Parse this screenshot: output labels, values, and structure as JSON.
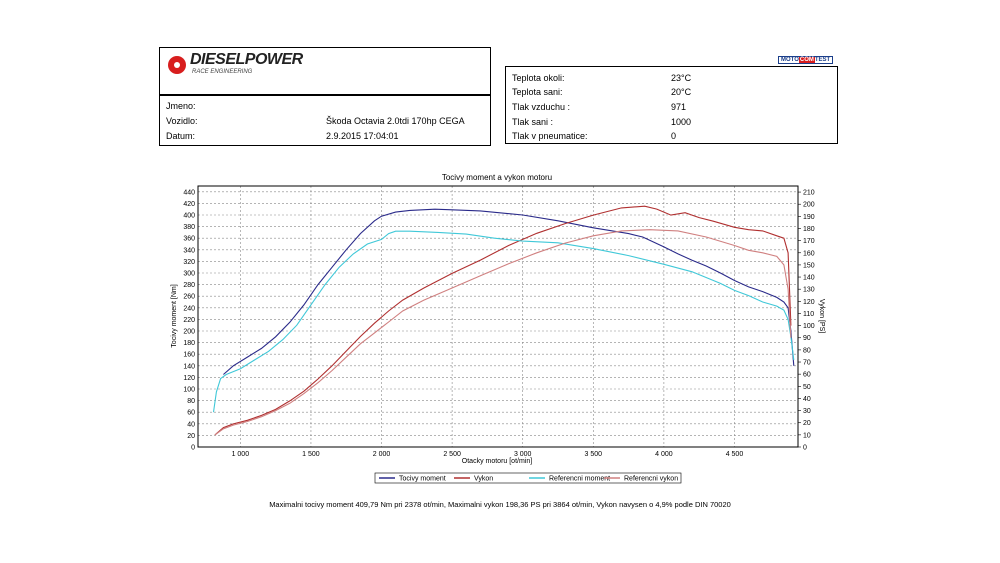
{
  "header": {
    "logo_text": "DIESELPOWER",
    "logo_sub": "RACE ENGINEERING",
    "badge_left": "MOTO",
    "badge_mid": "COM",
    "badge_right": "TEST"
  },
  "info": {
    "jmeno_label": "Jmeno:",
    "jmeno_value": "",
    "vozidlo_label": "Vozidlo:",
    "vozidlo_value": "Škoda Octavia 2.0tdi 170hp CEGA",
    "datum_label": "Datum:",
    "datum_value": "2.9.2015 17:04:01"
  },
  "conditions": [
    {
      "label": "Teplota okoli:",
      "value": "23°C"
    },
    {
      "label": "Teplota sani:",
      "value": "20°C"
    },
    {
      "label": "Tlak vzduchu :",
      "value": "971"
    },
    {
      "label": "Tlak sani :",
      "value": "1000"
    },
    {
      "label": "Tlak v pneumatice:",
      "value": "0"
    }
  ],
  "footer": "Maximalni tocivy moment 409,79 Nm pri 2378 ot/min,  Maximalni vykon 198,36 PS pri 3864 ot/min,  Vykon navysen o 4,9% podle DIN 70020",
  "chart_data": {
    "type": "line",
    "title": "Tocivy moment a vykon motoru",
    "xlabel": "Otacky motoru [ot/min]",
    "ylabel": "Tocivy moment [Nm]",
    "y2label": "Vykon [PS]",
    "xlim": [
      700,
      4950
    ],
    "ylim": [
      0,
      450
    ],
    "y2lim": [
      0,
      215
    ],
    "x_ticks": [
      1000,
      1500,
      2000,
      2500,
      3000,
      3500,
      4000,
      4500
    ],
    "x_tick_labels": [
      "1 000",
      "1 500",
      "2 000",
      "2 500",
      "3 000",
      "3 500",
      "4 000",
      "4 500"
    ],
    "y_ticks": [
      0,
      20,
      40,
      60,
      80,
      100,
      120,
      140,
      160,
      180,
      200,
      220,
      240,
      260,
      280,
      300,
      320,
      340,
      360,
      380,
      400,
      420,
      440
    ],
    "y2_ticks": [
      0,
      10,
      20,
      30,
      40,
      50,
      60,
      70,
      80,
      90,
      100,
      110,
      120,
      130,
      140,
      150,
      160,
      170,
      180,
      190,
      200,
      210
    ],
    "grid": true,
    "legend_position": "bottom",
    "colors": {
      "torque": "#2a2a8a",
      "power": "#b03030",
      "ref_torque": "#40c8d8",
      "ref_power": "#d08080"
    },
    "series": [
      {
        "name": "Tocivy moment",
        "axis": "left",
        "color": "#2a2a8a",
        "x": [
          880,
          950,
          1050,
          1150,
          1250,
          1350,
          1450,
          1550,
          1650,
          1750,
          1850,
          1950,
          2000,
          2100,
          2200,
          2378,
          2500,
          2700,
          3000,
          3250,
          3500,
          3750,
          3850,
          4000,
          4100,
          4200,
          4300,
          4400,
          4500,
          4600,
          4700,
          4800,
          4850,
          4880,
          4900,
          4920
        ],
        "y": [
          125,
          140,
          155,
          170,
          190,
          215,
          245,
          280,
          310,
          340,
          368,
          390,
          398,
          405,
          408,
          410,
          409,
          407,
          400,
          390,
          378,
          368,
          362,
          345,
          333,
          322,
          312,
          300,
          287,
          276,
          268,
          258,
          250,
          240,
          200,
          140
        ]
      },
      {
        "name": "Vykon",
        "axis": "right",
        "color": "#b03030",
        "x": [
          820,
          880,
          950,
          1050,
          1150,
          1250,
          1350,
          1450,
          1550,
          1650,
          1750,
          1850,
          1950,
          2050,
          2150,
          2300,
          2500,
          2700,
          2900,
          3100,
          3300,
          3500,
          3700,
          3864,
          3950,
          4050,
          4150,
          4250,
          4350,
          4500,
          4600,
          4700,
          4800,
          4850,
          4880,
          4900
        ],
        "y": [
          10,
          16,
          19,
          22,
          26,
          31,
          38,
          46,
          56,
          67,
          79,
          91,
          102,
          112,
          121,
          131,
          143,
          154,
          166,
          176,
          184,
          191,
          197,
          198.4,
          196,
          191,
          193,
          189,
          186,
          181,
          179,
          178,
          174,
          172,
          160,
          100
        ]
      },
      {
        "name": "Referencni moment",
        "axis": "left",
        "color": "#40c8d8",
        "x": [
          810,
          830,
          860,
          900,
          1000,
          1100,
          1200,
          1300,
          1400,
          1500,
          1600,
          1700,
          1800,
          1900,
          2000,
          2050,
          2100,
          2200,
          2400,
          2600,
          2800,
          3000,
          3250,
          3500,
          3750,
          4000,
          4200,
          4400,
          4500,
          4600,
          4700,
          4800,
          4850,
          4880,
          4900,
          4920
        ],
        "y": [
          60,
          95,
          118,
          125,
          135,
          150,
          165,
          185,
          210,
          245,
          280,
          310,
          333,
          350,
          358,
          368,
          372,
          372,
          370,
          367,
          360,
          355,
          352,
          342,
          330,
          315,
          302,
          282,
          270,
          261,
          250,
          243,
          236,
          220,
          190,
          150
        ]
      },
      {
        "name": "Referencni vykon",
        "axis": "right",
        "color": "#d08080",
        "x": [
          820,
          880,
          950,
          1050,
          1150,
          1250,
          1350,
          1450,
          1550,
          1650,
          1750,
          1850,
          1950,
          2050,
          2150,
          2300,
          2500,
          2700,
          2900,
          3100,
          3300,
          3500,
          3700,
          3900,
          4100,
          4300,
          4500,
          4600,
          4700,
          4800,
          4850,
          4880,
          4900
        ],
        "y": [
          10,
          15,
          18,
          21,
          25,
          30,
          36,
          44,
          53,
          63,
          74,
          85,
          94,
          103,
          112,
          121,
          131,
          141,
          151,
          160,
          168,
          174,
          178,
          179,
          178,
          173,
          166,
          162,
          160,
          157,
          150,
          130,
          90
        ]
      }
    ]
  }
}
